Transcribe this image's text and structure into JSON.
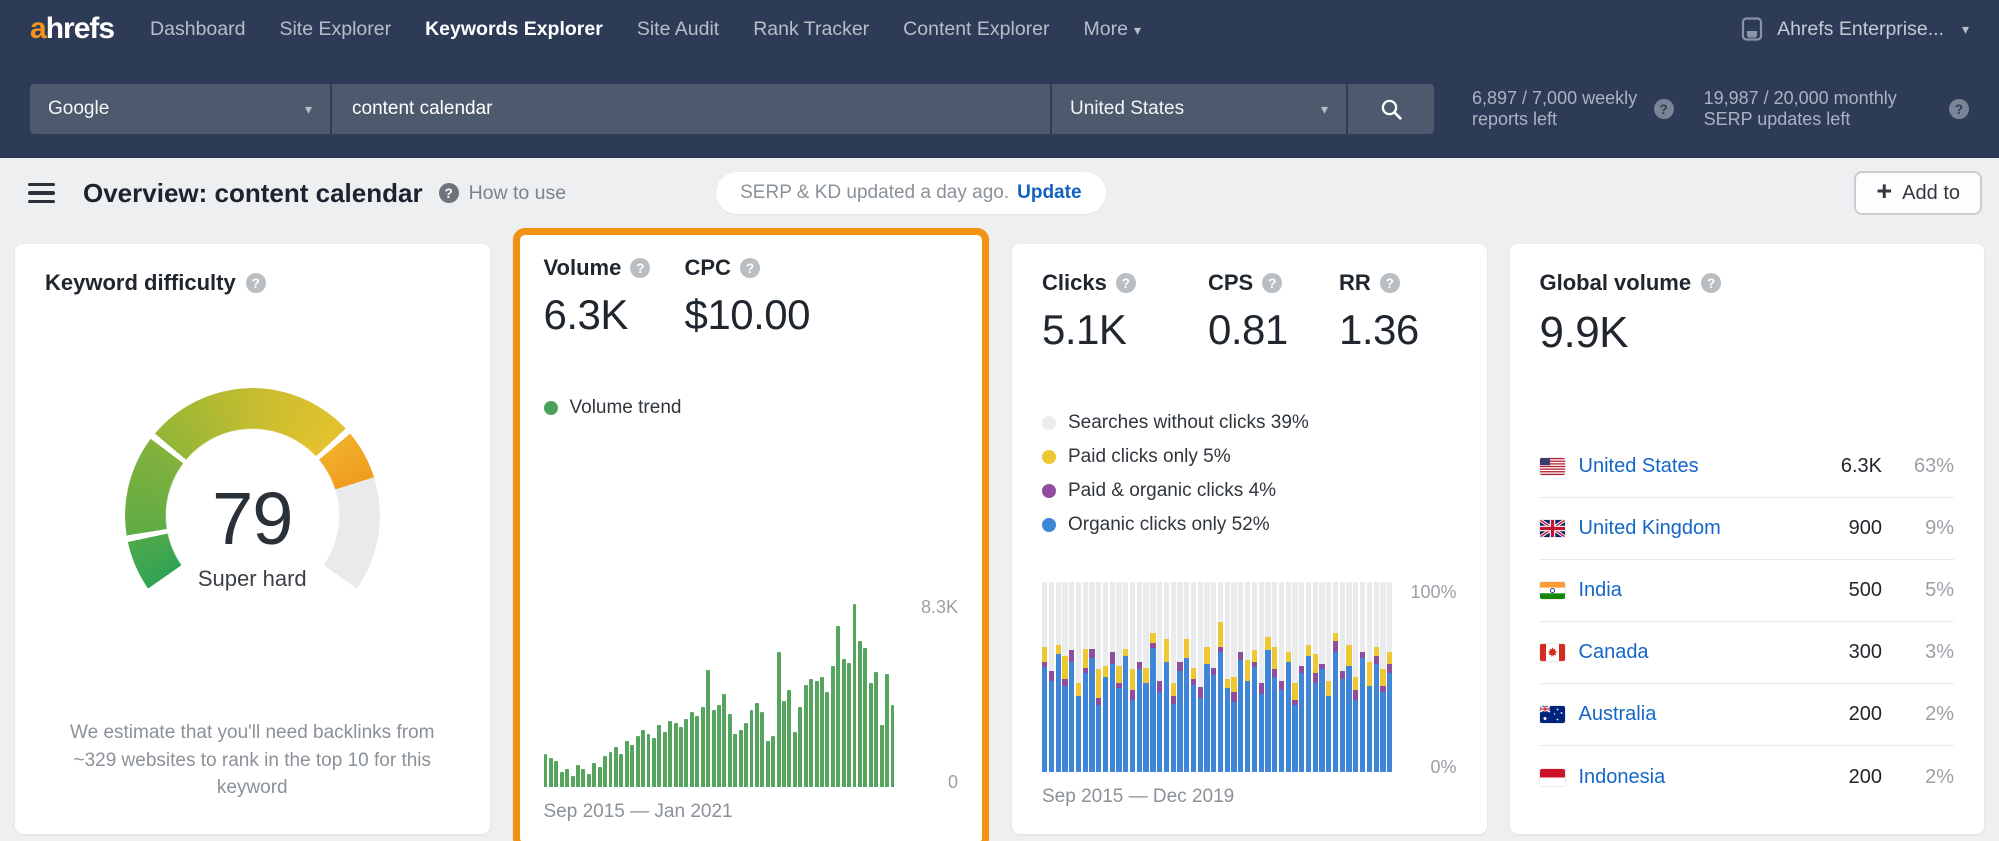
{
  "brand": {
    "logo_a": "a",
    "logo_rest": "hrefs"
  },
  "nav": {
    "items": [
      {
        "label": "Dashboard",
        "active": false
      },
      {
        "label": "Site Explorer",
        "active": false
      },
      {
        "label": "Keywords Explorer",
        "active": true
      },
      {
        "label": "Site Audit",
        "active": false
      },
      {
        "label": "Rank Tracker",
        "active": false
      },
      {
        "label": "Content Explorer",
        "active": false
      },
      {
        "label": "More",
        "active": false
      }
    ],
    "account_label": "Ahrefs Enterprise..."
  },
  "search": {
    "engine": "Google",
    "query": "content calendar",
    "country": "United States",
    "weekly_reports_left": "6,897 / 7,000 weekly reports left",
    "monthly_serp_updates_left": "19,987 / 20,000 monthly SERP updates left"
  },
  "header": {
    "title": "Overview: content calendar",
    "help_label": "How to use",
    "update_status": "SERP & KD updated a day ago.",
    "update_action": "Update",
    "add_to_label": "Add to"
  },
  "difficulty_card": {
    "title": "Keyword difficulty",
    "score": "79",
    "tier": "Super hard",
    "note": "We estimate that you'll need backlinks from ~329 websites to rank in the top 10 for this keyword"
  },
  "volume_card": {
    "volume_label": "Volume",
    "volume_value": "6.3K",
    "cpc_label": "CPC",
    "cpc_value": "$10.00",
    "legend": "Volume trend",
    "y_max_label": "8.3K",
    "y_min_label": "0",
    "date_range": "Sep 2015 — Jan 2021"
  },
  "clicks_card": {
    "clicks_label": "Clicks",
    "clicks_value": "5.1K",
    "cps_label": "CPS",
    "cps_value": "0.81",
    "rr_label": "RR",
    "rr_value": "1.36",
    "legend": [
      {
        "label": "Searches without clicks 39%",
        "color": "#E9EBED"
      },
      {
        "label": "Paid clicks only 5%",
        "color": "#EFC733"
      },
      {
        "label": "Paid & organic clicks 4%",
        "color": "#8F4DA0"
      },
      {
        "label": "Organic clicks only 52%",
        "color": "#3F86D8"
      }
    ],
    "y_max_label": "100%",
    "y_min_label": "0%",
    "date_range": "Sep 2015 — Dec 2019"
  },
  "global_card": {
    "title": "Global volume",
    "value": "9.9K",
    "rows": [
      {
        "country": "United States",
        "volume": "6.3K",
        "share": "63%",
        "flag": "us"
      },
      {
        "country": "United Kingdom",
        "volume": "900",
        "share": "9%",
        "flag": "gb"
      },
      {
        "country": "India",
        "volume": "500",
        "share": "5%",
        "flag": "in"
      },
      {
        "country": "Canada",
        "volume": "300",
        "share": "3%",
        "flag": "ca"
      },
      {
        "country": "Australia",
        "volume": "200",
        "share": "2%",
        "flag": "au"
      },
      {
        "country": "Indonesia",
        "volume": "200",
        "share": "2%",
        "flag": "id"
      }
    ]
  },
  "colors": {
    "accent_orange": "#F39114",
    "nav_bg": "#2D3B56",
    "control_bg": "#4D5A6D",
    "bar_green": "#55A55E",
    "link_blue": "#1466C8",
    "organic_blue": "#3F86D8",
    "paid_yellow": "#EFC733",
    "paid_organic_purple": "#8F4DA0",
    "no_click_gray": "#E9EBED"
  },
  "chart_data": [
    {
      "type": "bar",
      "name": "volume-trend",
      "title": "Volume trend",
      "x_range": "Sep 2015 — Jan 2021",
      "x_unit": "month",
      "ymax": 8600,
      "gridline_value": 8300,
      "gridline_label": "8.3K",
      "bar_color": "#55A55E",
      "values": [
        1500,
        1300,
        1200,
        700,
        800,
        500,
        1000,
        800,
        600,
        1100,
        900,
        1400,
        1600,
        1800,
        1500,
        2100,
        1900,
        2300,
        2600,
        2400,
        2200,
        2800,
        2500,
        3000,
        2900,
        2700,
        3100,
        3400,
        3200,
        3600,
        5300,
        3500,
        3700,
        4200,
        3300,
        2400,
        2600,
        2900,
        3500,
        3800,
        3400,
        2100,
        2300,
        6100,
        3900,
        4400,
        2500,
        3600,
        4600,
        4900,
        4800,
        5000,
        4300,
        5500,
        7300,
        5800,
        5600,
        8300,
        6600,
        6300,
        4700,
        5200,
        2800,
        5100,
        3700
      ]
    },
    {
      "type": "bar",
      "name": "clicks-breakdown",
      "stacked": true,
      "x_range": "Sep 2015 — Dec 2019",
      "x_unit": "month",
      "ylim": [
        0,
        100
      ],
      "y_labels": [
        "0%",
        "100%"
      ],
      "note": "Searches-without-clicks segment is the remainder to 100% per month",
      "series": [
        {
          "name": "Organic clicks only",
          "color": "#3F86D8",
          "values": [
            55,
            48,
            62,
            45,
            58,
            40,
            52,
            60,
            35,
            50,
            57,
            44,
            61,
            38,
            54,
            47,
            65,
            42,
            58,
            36,
            53,
            60,
            46,
            39,
            57,
            51,
            63,
            44,
            37,
            59,
            48,
            55,
            41,
            64,
            50,
            43,
            58,
            35,
            52,
            61,
            47,
            54,
            40,
            63,
            49,
            56,
            38,
            60,
            45,
            57,
            42,
            52
          ]
        },
        {
          "name": "Paid & organic clicks",
          "color": "#8F4DA0",
          "values": [
            3,
            5,
            0,
            4,
            6,
            0,
            3,
            5,
            4,
            0,
            6,
            3,
            0,
            5,
            4,
            0,
            3,
            6,
            0,
            4,
            5,
            0,
            3,
            6,
            0,
            4,
            3,
            0,
            5,
            4,
            0,
            3,
            6,
            0,
            4,
            5,
            0,
            3,
            4,
            0,
            5,
            3,
            0,
            6,
            4,
            0,
            5,
            3,
            0,
            4,
            3,
            5
          ]
        },
        {
          "name": "Paid clicks only",
          "color": "#EFC733",
          "values": [
            8,
            0,
            5,
            12,
            0,
            7,
            10,
            0,
            15,
            6,
            0,
            9,
            4,
            11,
            0,
            8,
            5,
            0,
            12,
            7,
            0,
            10,
            6,
            0,
            9,
            0,
            13,
            5,
            8,
            0,
            11,
            6,
            0,
            7,
            12,
            0,
            5,
            9,
            0,
            6,
            10,
            0,
            8,
            4,
            0,
            11,
            7,
            0,
            13,
            5,
            9,
            6
          ]
        },
        {
          "name": "Searches without clicks",
          "color": "#E9EBED",
          "values": "remainder_to_100"
        }
      ]
    },
    {
      "type": "gauge",
      "name": "keyword-difficulty",
      "value": 79,
      "max": 100,
      "tier": "Super hard",
      "segment_boundaries": [
        10,
        30,
        70
      ],
      "filled_colors": [
        "#2FA452",
        "#93B637",
        "#E4C22E",
        "#F19C1F"
      ],
      "empty_color": "#E8EAEC"
    }
  ]
}
